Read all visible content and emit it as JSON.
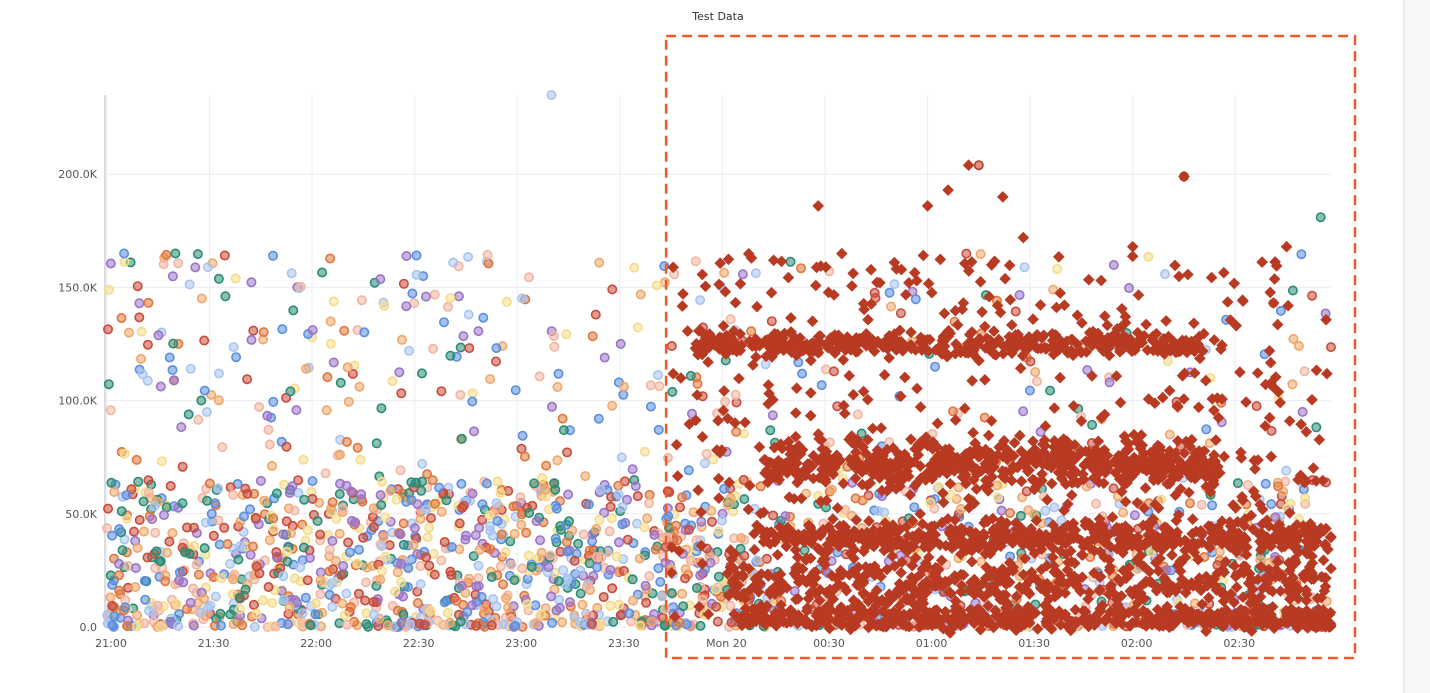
{
  "chart_data": {
    "type": "scatter",
    "title": "Test Data",
    "xlabel": "",
    "ylabel": "",
    "x_ticks": [
      "21:00",
      "21:30",
      "22:00",
      "22:30",
      "23:00",
      "23:30",
      "Mon 20",
      "00:30",
      "01:00",
      "01:30",
      "02:00",
      "02:30"
    ],
    "y_ticks": [
      "0.0",
      "50.0K",
      "100.0K",
      "150.0K",
      "200.0K"
    ],
    "xlim": [
      "21:00",
      "02:58"
    ],
    "ylim": [
      0,
      235000
    ],
    "grid": true,
    "legend": "none",
    "highlight_box": {
      "x_start": "23:45",
      "x_end": "03:05",
      "color": "#f05a28",
      "style": "dashed"
    },
    "background_series_colors": [
      "#5b8ede",
      "#2a8c74",
      "#f0a76a",
      "#a8c4f0",
      "#f5dc8a",
      "#e0773c",
      "#9a74c9",
      "#c94b3a",
      "#f2b5a0"
    ],
    "background_distribution": {
      "x_range": [
        "21:00",
        "02:58"
      ],
      "dense_y_range": [
        0,
        65000
      ],
      "sparse_y_range": [
        65000,
        165000
      ]
    },
    "featured_series": {
      "marker": "diamond",
      "color": "#b83a22",
      "x_range": [
        "23:45",
        "02:58"
      ]
    },
    "sample_points": [
      {
        "x": "23:10",
        "y": 235000,
        "color": "#a8c4f0"
      },
      {
        "x": "01:15",
        "y": 204000,
        "color": "#b83a22"
      },
      {
        "x": "02:15",
        "y": 199000,
        "color": "#b83a22"
      },
      {
        "x": "02:55",
        "y": 181000,
        "color": "#2a8c74"
      },
      {
        "x": "21:05",
        "y": 165000,
        "color": "#5b8ede"
      },
      {
        "x": "21:20",
        "y": 165000,
        "color": "#2a8c74"
      }
    ]
  }
}
